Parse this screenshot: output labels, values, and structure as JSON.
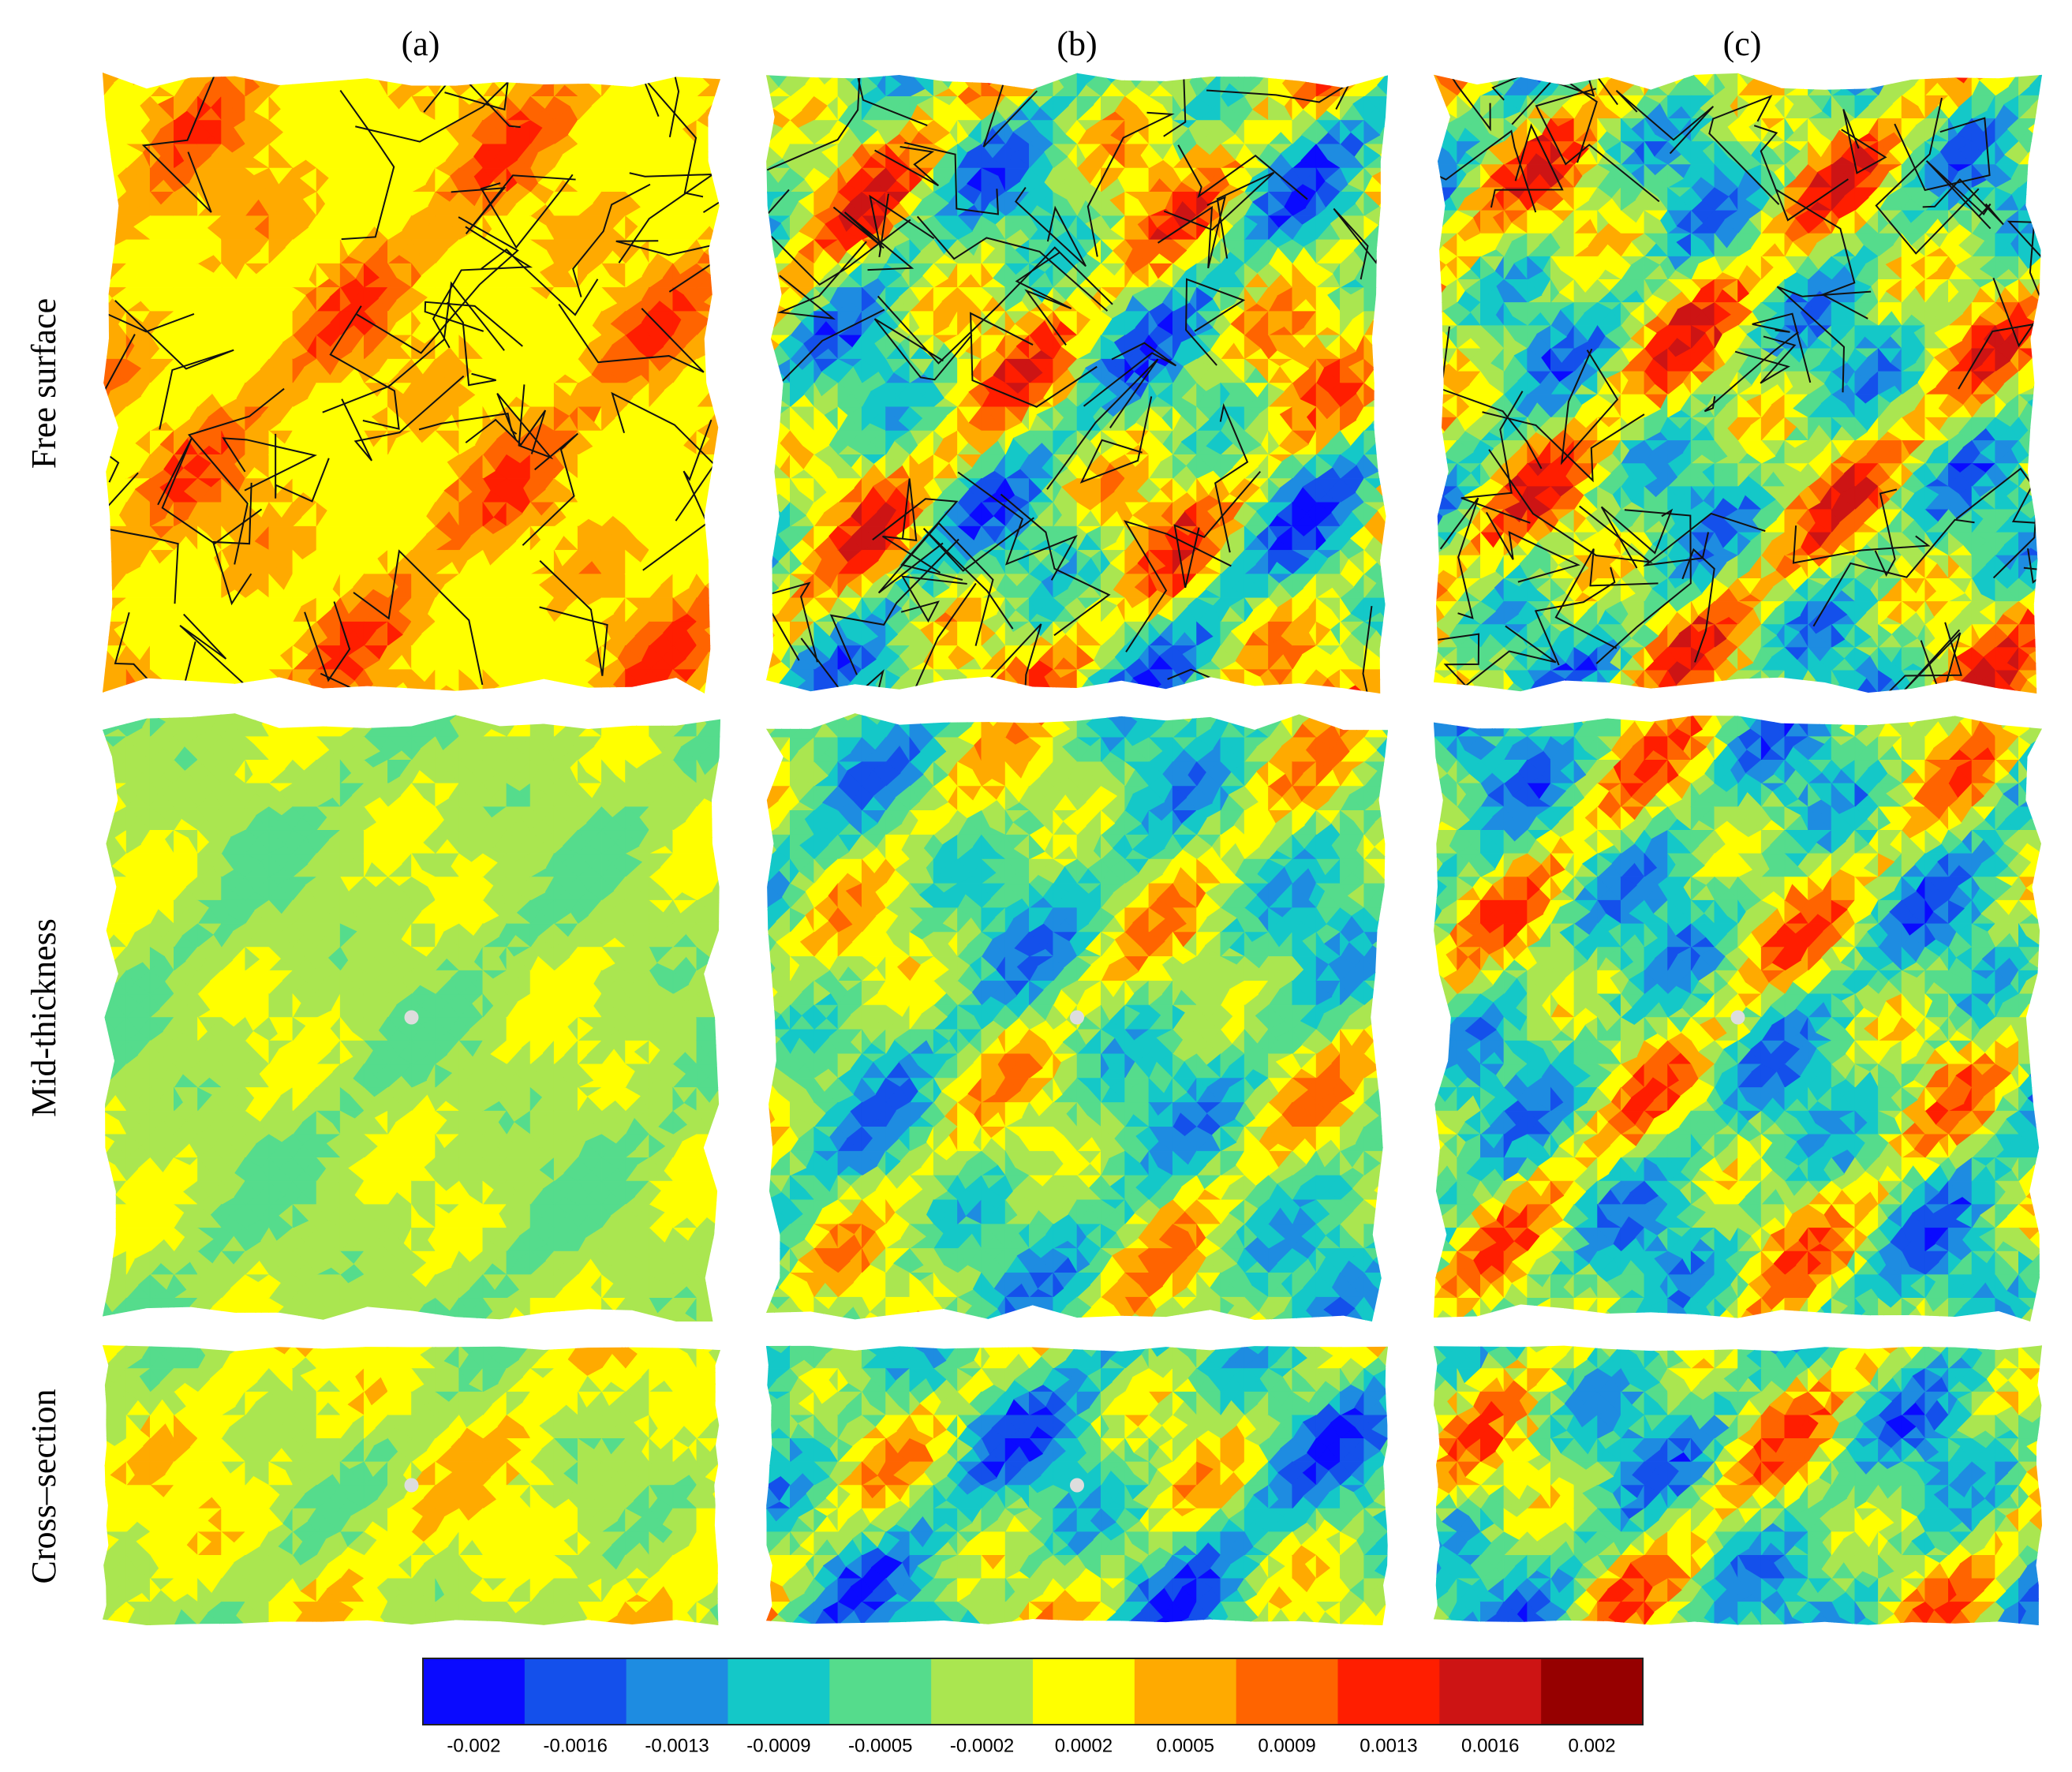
{
  "columns": [
    "(a)",
    "(b)",
    "(c)"
  ],
  "rows": [
    "Free surface",
    "Mid-thickness",
    "Cross–section"
  ],
  "colorbar": {
    "colors": [
      "#0a0aff",
      "#1450eb",
      "#1e8ce1",
      "#14c8c8",
      "#55dc8c",
      "#aae650",
      "#ffff00",
      "#ffaa00",
      "#ff6400",
      "#ff1e00",
      "#cd1414",
      "#960000"
    ],
    "tick_labels": [
      "-0.002",
      "-0.0016",
      "-0.0013",
      "-0.0009",
      "-0.0005",
      "-0.0002",
      "0.0002",
      "0.0005",
      "0.0009",
      "0.0013",
      "0.0016",
      "0.002"
    ]
  }
}
